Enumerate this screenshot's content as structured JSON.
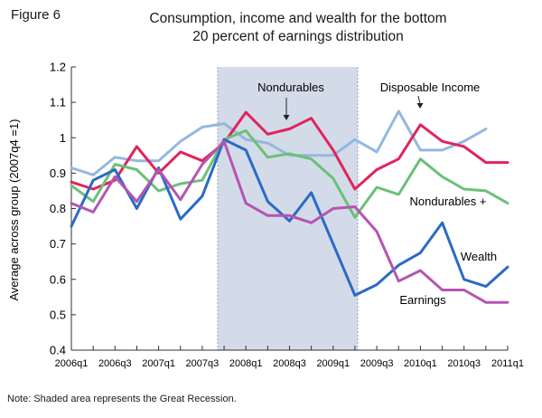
{
  "figure_label": "Figure 6",
  "note": "Note: Shaded area represents the Great Recession.",
  "colors": {
    "nondurables": "#e0245e",
    "disposable_income": "#93b8e0",
    "nondurables_plus": "#6cc077",
    "wealth": "#2b6bc4",
    "earnings": "#b455b2",
    "recession_shade": "#d3dbe8",
    "recession_border": "#8fa3c3"
  },
  "chart_data": {
    "type": "line",
    "title": [
      "Consumption, income and wealth for the bottom",
      "20 percent of earnings distribution"
    ],
    "ylabel": "Average across group (2007q4 =1)",
    "xlabel": "",
    "ylim": [
      0.4,
      1.2
    ],
    "yticks": [
      "0.4",
      "0.5",
      "0.6",
      "0.7",
      "0.8",
      "0.9",
      "1",
      "1.1",
      "1.2"
    ],
    "x": [
      "2006q1",
      "2006q2",
      "2006q3",
      "2006q4",
      "2007q1",
      "2007q2",
      "2007q3",
      "2007q4",
      "2008q1",
      "2008q2",
      "2008q3",
      "2008q4",
      "2009q1",
      "2009q2",
      "2009q3",
      "2009q4",
      "2010q1",
      "2010q2",
      "2010q3",
      "2010q4",
      "2011q1"
    ],
    "xtick_labels": [
      "2006q1",
      "2006q3",
      "2007q1",
      "2007q3",
      "2008q1",
      "2008q3",
      "2009q1",
      "2009q3",
      "2010q1",
      "2010q3",
      "2011q1"
    ],
    "recession": {
      "start": "2007q4",
      "end": "2009q2"
    },
    "grid": false,
    "series": [
      {
        "name": "Disposable Income",
        "color_key": "disposable_income",
        "values": [
          0.915,
          0.895,
          0.945,
          0.935,
          0.935,
          0.99,
          1.03,
          1.04,
          0.995,
          0.985,
          0.95,
          0.95,
          0.95,
          0.995,
          0.96,
          1.075,
          0.965,
          0.965,
          0.99,
          1.025,
          null
        ]
      },
      {
        "name": "Nondurables",
        "color_key": "nondurables",
        "values": [
          0.875,
          0.855,
          0.88,
          0.975,
          0.9,
          0.96,
          0.935,
          0.985,
          1.072,
          1.01,
          1.025,
          1.055,
          0.965,
          0.855,
          0.91,
          0.94,
          1.037,
          0.99,
          0.975,
          0.93,
          0.93
        ]
      },
      {
        "name": "Nondurables +",
        "color_key": "nondurables_plus",
        "values": [
          0.865,
          0.82,
          0.925,
          0.91,
          0.85,
          0.87,
          0.88,
          0.995,
          1.02,
          0.945,
          0.955,
          0.94,
          0.885,
          0.775,
          0.86,
          0.84,
          0.94,
          0.89,
          0.855,
          0.85,
          0.815
        ]
      },
      {
        "name": "Wealth",
        "color_key": "wealth",
        "values": [
          0.75,
          0.88,
          0.91,
          0.8,
          0.915,
          0.77,
          0.835,
          0.995,
          0.965,
          0.82,
          0.765,
          0.845,
          0.7,
          0.555,
          0.585,
          0.64,
          0.675,
          0.76,
          0.6,
          0.58,
          0.635
        ]
      },
      {
        "name": "Earnings",
        "color_key": "earnings",
        "values": [
          0.815,
          0.79,
          0.89,
          0.82,
          0.91,
          0.825,
          0.925,
          0.99,
          0.815,
          0.78,
          0.78,
          0.76,
          0.8,
          0.805,
          0.735,
          0.595,
          0.625,
          0.57,
          0.57,
          0.535,
          0.535
        ]
      }
    ],
    "annotations": [
      {
        "text": "Nondurables",
        "series": "Nondurables"
      },
      {
        "text": "Disposable Income",
        "series": "Disposable Income"
      },
      {
        "text": "Nondurables +",
        "series": "Nondurables +"
      },
      {
        "text": "Wealth",
        "series": "Wealth"
      },
      {
        "text": "Earnings",
        "series": "Earnings"
      }
    ]
  }
}
